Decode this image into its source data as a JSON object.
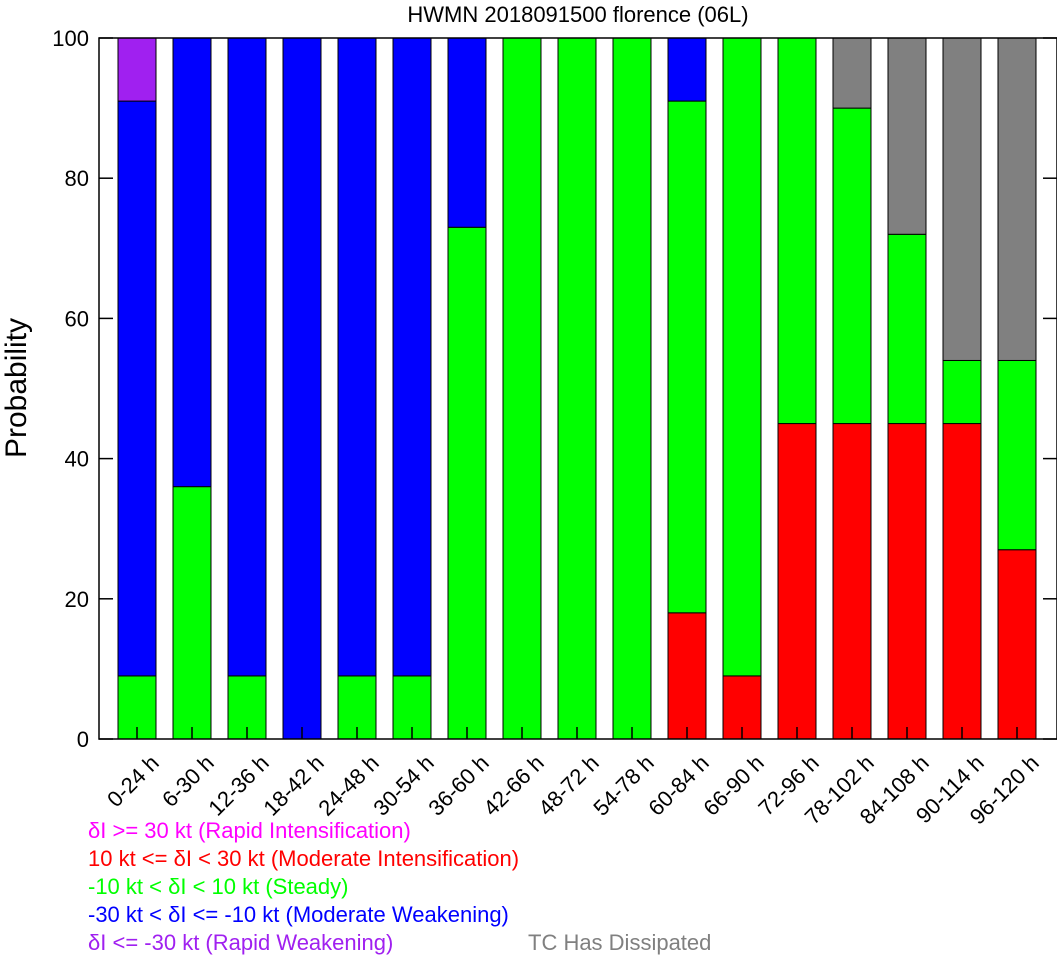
{
  "chart_data": {
    "type": "bar",
    "stacked": true,
    "title": "HWMN 2018091500 florence (06L)",
    "xlabel": "",
    "ylabel": "Probability",
    "ylim": [
      0,
      100
    ],
    "yticks": [
      "0",
      "20",
      "40",
      "60",
      "80",
      "100"
    ],
    "yticks_values": [
      0,
      20,
      40,
      60,
      80,
      100
    ],
    "grid": false,
    "categories": [
      "0-24 h",
      "6-30 h",
      "12-36 h",
      "18-42 h",
      "24-48 h",
      "30-54 h",
      "36-60 h",
      "42-66 h",
      "48-72 h",
      "54-78 h",
      "60-84 h",
      "66-90 h",
      "72-96 h",
      "78-102 h",
      "84-108 h",
      "90-114 h",
      "96-120 h"
    ],
    "series": [
      {
        "key": "rapid_intensification",
        "color": "#ff00ff",
        "values": [
          0,
          0,
          0,
          0,
          0,
          0,
          0,
          0,
          0,
          0,
          0,
          0,
          0,
          0,
          0,
          0,
          0
        ]
      },
      {
        "key": "moderate_intensification",
        "color": "#ff0000",
        "values": [
          0,
          0,
          0,
          0,
          0,
          0,
          0,
          0,
          0,
          0,
          18,
          9,
          45,
          45,
          45,
          45,
          27
        ]
      },
      {
        "key": "steady",
        "color": "#00ff00",
        "values": [
          9,
          36,
          9,
          0,
          9,
          9,
          73,
          100,
          100,
          100,
          73,
          91,
          55,
          45,
          27,
          9,
          27
        ]
      },
      {
        "key": "moderate_weakening",
        "color": "#0000ff",
        "values": [
          82,
          64,
          91,
          100,
          91,
          91,
          27,
          0,
          0,
          0,
          9,
          0,
          0,
          0,
          0,
          0,
          0
        ]
      },
      {
        "key": "rapid_weakening",
        "color": "#a020f0",
        "values": [
          9,
          0,
          0,
          0,
          0,
          0,
          0,
          0,
          0,
          0,
          0,
          0,
          0,
          0,
          0,
          0,
          0
        ]
      },
      {
        "key": "dissipated",
        "color": "#808080",
        "values": [
          0,
          0,
          0,
          0,
          0,
          0,
          0,
          0,
          0,
          0,
          0,
          0,
          0,
          10,
          28,
          46,
          46
        ]
      }
    ],
    "legend": {
      "placement": "bottom-left",
      "entries": [
        {
          "text": "δI >= 30 kt (Rapid Intensification)",
          "color": "#ff00ff"
        },
        {
          "text": "10 kt <= δI < 30 kt (Moderate Intensification)",
          "color": "#ff0000"
        },
        {
          "text": "-10 kt < δI < 10 kt (Steady)",
          "color": "#00ff00"
        },
        {
          "text": "-30 kt < δI <= -10 kt (Moderate Weakening)",
          "color": "#0000ff"
        },
        {
          "text": "δI <= -30 kt (Rapid Weakening)",
          "color": "#a020f0"
        },
        {
          "text": "TC Has Dissipated",
          "color": "#808080"
        }
      ]
    }
  }
}
